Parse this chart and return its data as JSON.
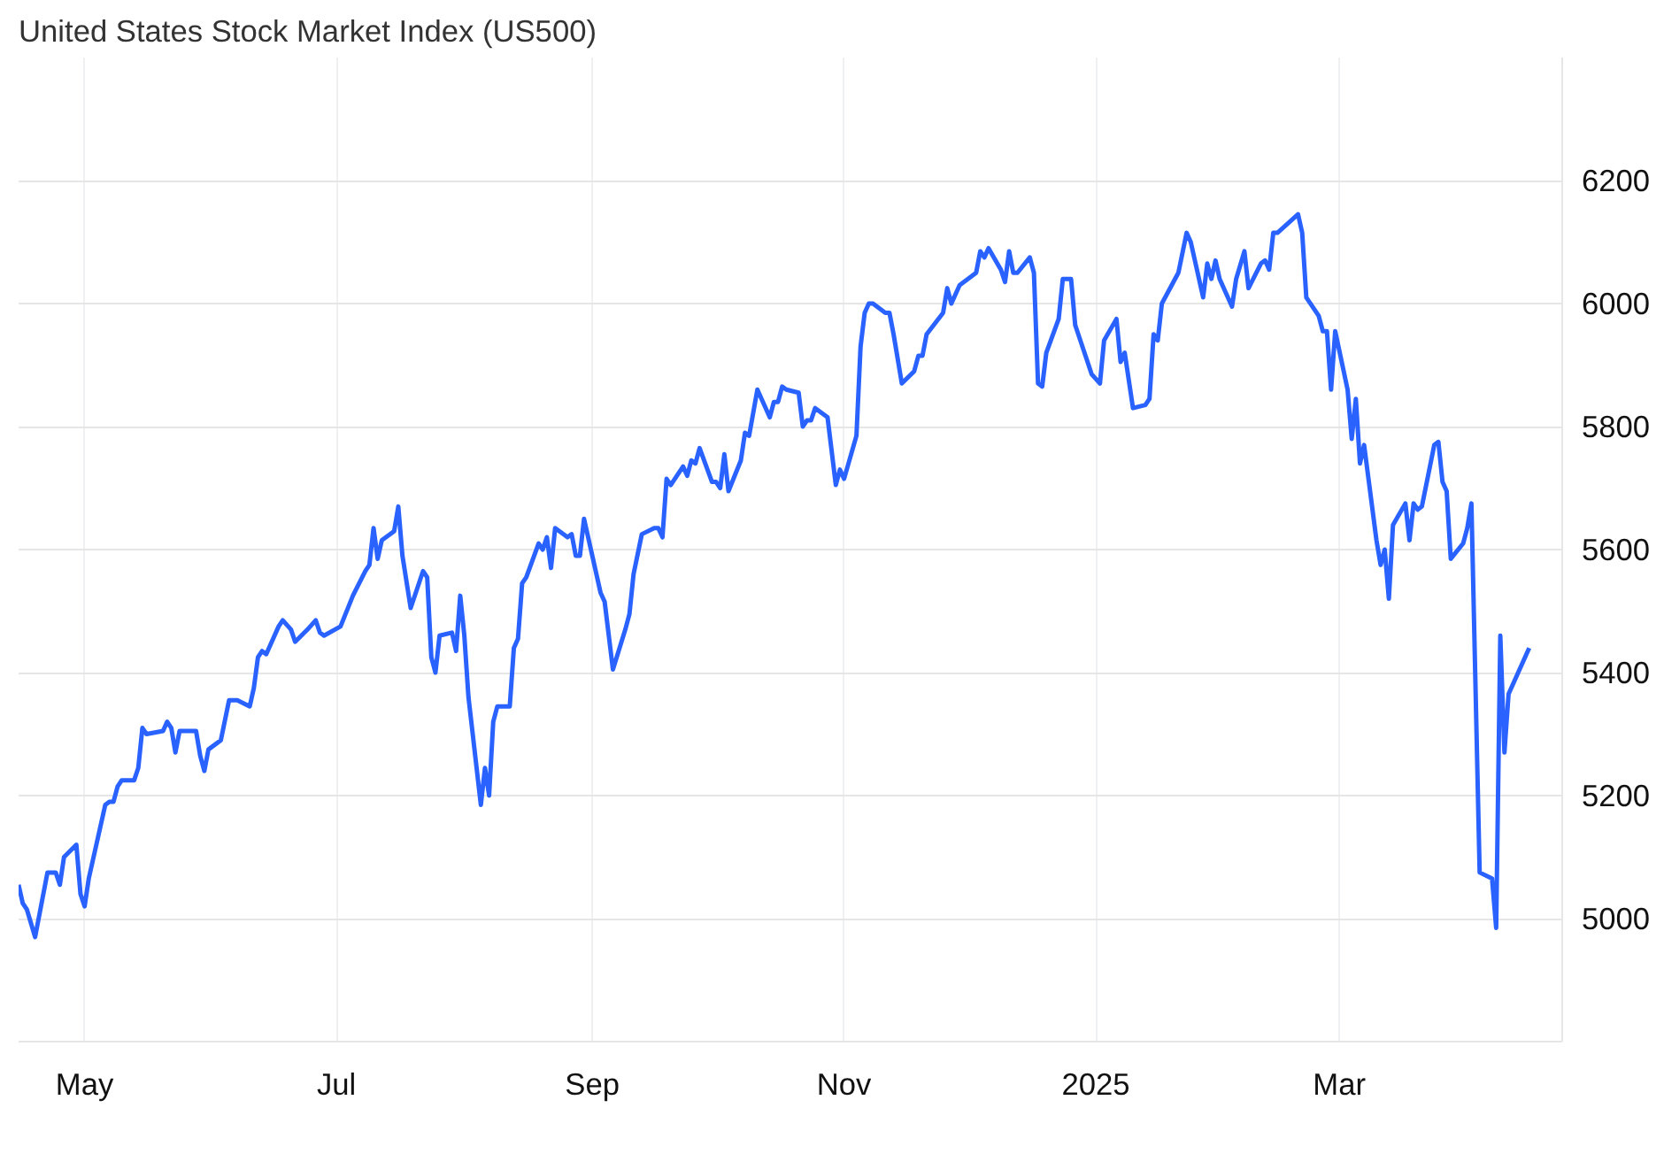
{
  "chart_data": {
    "type": "line",
    "title": "United States Stock Market Index (US500)",
    "x": [
      "2024-04-15",
      "2024-04-16",
      "2024-04-17",
      "2024-04-19",
      "2024-04-22",
      "2024-04-24",
      "2024-04-25",
      "2024-04-26",
      "2024-04-29",
      "2024-04-30",
      "2024-05-01",
      "2024-05-02",
      "2024-05-06",
      "2024-05-07",
      "2024-05-08",
      "2024-05-09",
      "2024-05-10",
      "2024-05-13",
      "2024-05-14",
      "2024-05-15",
      "2024-05-16",
      "2024-05-20",
      "2024-05-21",
      "2024-05-22",
      "2024-05-23",
      "2024-05-24",
      "2024-05-28",
      "2024-05-29",
      "2024-05-30",
      "2024-05-31",
      "2024-06-03",
      "2024-06-05",
      "2024-06-07",
      "2024-06-10",
      "2024-06-11",
      "2024-06-12",
      "2024-06-13",
      "2024-06-14",
      "2024-06-17",
      "2024-06-18",
      "2024-06-20",
      "2024-06-21",
      "2024-06-24",
      "2024-06-26",
      "2024-06-27",
      "2024-06-28",
      "2024-07-02",
      "2024-07-05",
      "2024-07-08",
      "2024-07-09",
      "2024-07-10",
      "2024-07-11",
      "2024-07-12",
      "2024-07-15",
      "2024-07-16",
      "2024-07-17",
      "2024-07-19",
      "2024-07-22",
      "2024-07-23",
      "2024-07-24",
      "2024-07-25",
      "2024-07-26",
      "2024-07-29",
      "2024-07-30",
      "2024-07-31",
      "2024-08-01",
      "2024-08-02",
      "2024-08-05",
      "2024-08-06",
      "2024-08-07",
      "2024-08-08",
      "2024-08-09",
      "2024-08-12",
      "2024-08-13",
      "2024-08-14",
      "2024-08-15",
      "2024-08-16",
      "2024-08-19",
      "2024-08-20",
      "2024-08-21",
      "2024-08-22",
      "2024-08-23",
      "2024-08-26",
      "2024-08-27",
      "2024-08-28",
      "2024-08-29",
      "2024-08-30",
      "2024-09-03",
      "2024-09-04",
      "2024-09-06",
      "2024-09-09",
      "2024-09-10",
      "2024-09-11",
      "2024-09-13",
      "2024-09-16",
      "2024-09-17",
      "2024-09-18",
      "2024-09-19",
      "2024-09-20",
      "2024-09-23",
      "2024-09-24",
      "2024-09-25",
      "2024-09-26",
      "2024-09-27",
      "2024-09-30",
      "2024-10-01",
      "2024-10-02",
      "2024-10-03",
      "2024-10-04",
      "2024-10-07",
      "2024-10-08",
      "2024-10-09",
      "2024-10-11",
      "2024-10-14",
      "2024-10-15",
      "2024-10-16",
      "2024-10-17",
      "2024-10-18",
      "2024-10-21",
      "2024-10-22",
      "2024-10-23",
      "2024-10-24",
      "2024-10-25",
      "2024-10-28",
      "2024-10-30",
      "2024-10-31",
      "2024-11-01",
      "2024-11-04",
      "2024-11-05",
      "2024-11-06",
      "2024-11-07",
      "2024-11-08",
      "2024-11-11",
      "2024-11-12",
      "2024-11-13",
      "2024-11-15",
      "2024-11-18",
      "2024-11-19",
      "2024-11-20",
      "2024-11-21",
      "2024-11-25",
      "2024-11-26",
      "2024-11-27",
      "2024-11-29",
      "2024-12-02",
      "2024-12-03",
      "2024-12-04",
      "2024-12-05",
      "2024-12-06",
      "2024-12-09",
      "2024-12-10",
      "2024-12-11",
      "2024-12-12",
      "2024-12-13",
      "2024-12-16",
      "2024-12-17",
      "2024-12-18",
      "2024-12-19",
      "2024-12-20",
      "2024-12-23",
      "2024-12-24",
      "2024-12-26",
      "2024-12-27",
      "2024-12-30",
      "2024-12-31",
      "2025-01-02",
      "2025-01-03",
      "2025-01-06",
      "2025-01-07",
      "2025-01-08",
      "2025-01-10",
      "2025-01-13",
      "2025-01-14",
      "2025-01-15",
      "2025-01-16",
      "2025-01-17",
      "2025-01-21",
      "2025-01-23",
      "2025-01-24",
      "2025-01-27",
      "2025-01-28",
      "2025-01-29",
      "2025-01-30",
      "2025-01-31",
      "2025-02-03",
      "2025-02-04",
      "2025-02-06",
      "2025-02-07",
      "2025-02-10",
      "2025-02-11",
      "2025-02-12",
      "2025-02-13",
      "2025-02-14",
      "2025-02-19",
      "2025-02-20",
      "2025-02-21",
      "2025-02-24",
      "2025-02-25",
      "2025-02-26",
      "2025-02-27",
      "2025-02-28",
      "2025-03-03",
      "2025-03-04",
      "2025-03-05",
      "2025-03-06",
      "2025-03-07",
      "2025-03-10",
      "2025-03-11",
      "2025-03-12",
      "2025-03-13",
      "2025-03-14",
      "2025-03-17",
      "2025-03-18",
      "2025-03-19",
      "2025-03-20",
      "2025-03-21",
      "2025-03-24",
      "2025-03-25",
      "2025-03-26",
      "2025-03-27",
      "2025-03-28",
      "2025-03-31",
      "2025-04-01",
      "2025-04-02",
      "2025-04-04",
      "2025-04-07",
      "2025-04-08",
      "2025-04-09",
      "2025-04-10",
      "2025-04-11",
      "2025-04-16"
    ],
    "series": [
      {
        "color": "#2962ff",
        "values": [
          5055,
          5025,
          5015,
          4970,
          5075,
          5075,
          5055,
          5100,
          5120,
          5040,
          5020,
          5065,
          5185,
          5190,
          5190,
          5215,
          5225,
          5225,
          5245,
          5310,
          5300,
          5305,
          5320,
          5310,
          5270,
          5305,
          5305,
          5265,
          5240,
          5275,
          5290,
          5355,
          5355,
          5345,
          5375,
          5425,
          5435,
          5430,
          5475,
          5485,
          5470,
          5450,
          5470,
          5485,
          5465,
          5460,
          5475,
          5525,
          5565,
          5575,
          5635,
          5585,
          5615,
          5630,
          5670,
          5590,
          5505,
          5565,
          5555,
          5425,
          5400,
          5460,
          5465,
          5435,
          5525,
          5460,
          5360,
          5185,
          5245,
          5200,
          5320,
          5345,
          5345,
          5440,
          5455,
          5545,
          5555,
          5610,
          5600,
          5620,
          5570,
          5635,
          5620,
          5625,
          5590,
          5590,
          5650,
          5530,
          5515,
          5405,
          5470,
          5495,
          5560,
          5625,
          5635,
          5635,
          5620,
          5715,
          5705,
          5735,
          5720,
          5745,
          5740,
          5765,
          5710,
          5710,
          5700,
          5755,
          5695,
          5745,
          5790,
          5785,
          5860,
          5815,
          5840,
          5840,
          5865,
          5860,
          5855,
          5800,
          5810,
          5810,
          5830,
          5815,
          5705,
          5730,
          5715,
          5785,
          5930,
          5985,
          6000,
          6000,
          5985,
          5985,
          5950,
          5870,
          5890,
          5915,
          5915,
          5950,
          5985,
          6025,
          6000,
          6030,
          6045,
          6050,
          6085,
          6075,
          6090,
          6055,
          6035,
          6085,
          6050,
          6050,
          6075,
          6050,
          5870,
          5865,
          5920,
          5975,
          6040,
          6040,
          5965,
          5905,
          5885,
          5870,
          5940,
          5975,
          5905,
          5920,
          5830,
          5835,
          5845,
          5950,
          5940,
          6000,
          6050,
          6115,
          6100,
          6010,
          6065,
          6040,
          6070,
          6040,
          5995,
          6040,
          6085,
          6025,
          6065,
          6070,
          6055,
          6115,
          6115,
          6145,
          6115,
          6010,
          5980,
          5955,
          5955,
          5860,
          5955,
          5860,
          5780,
          5845,
          5740,
          5770,
          5615,
          5575,
          5600,
          5520,
          5640,
          5675,
          5615,
          5675,
          5665,
          5670,
          5770,
          5775,
          5710,
          5695,
          5585,
          5610,
          5635,
          5675,
          5075,
          5065,
          4985,
          5460,
          5270,
          5365,
          5440
        ]
      }
    ],
    "xlim": [
      "2024-04-15",
      "2025-04-24"
    ],
    "xticks": [
      {
        "value": "2024-05-01",
        "label": "May"
      },
      {
        "value": "2024-07-01",
        "label": "Jul"
      },
      {
        "value": "2024-09-01",
        "label": "Sep"
      },
      {
        "value": "2024-11-01",
        "label": "Nov"
      },
      {
        "value": "2025-01-01",
        "label": "2025"
      },
      {
        "value": "2025-03-01",
        "label": "Mar"
      }
    ],
    "ylim": [
      4800,
      6400
    ],
    "yticks": [
      5000,
      5200,
      5400,
      5600,
      5800,
      6000,
      6200
    ],
    "grid": true,
    "line_style": "solid"
  }
}
